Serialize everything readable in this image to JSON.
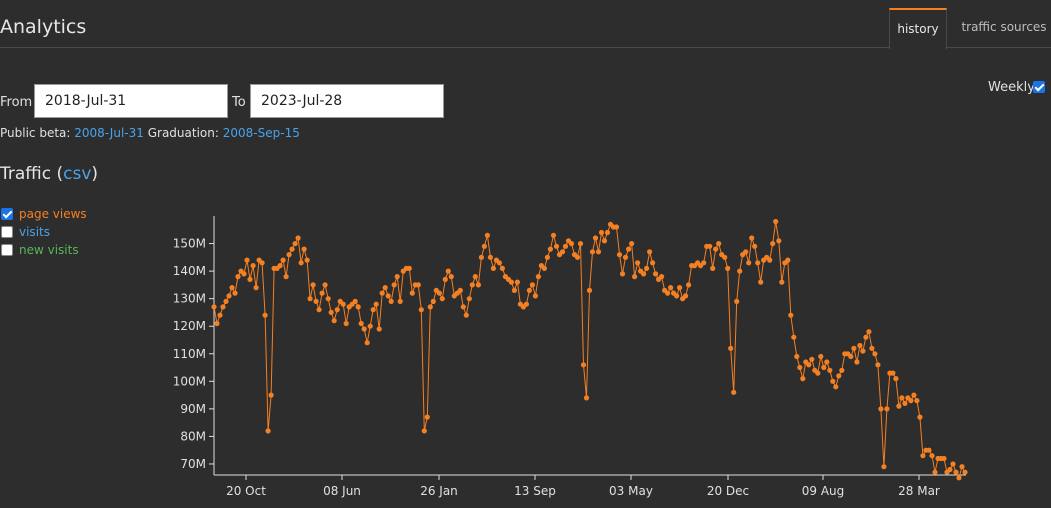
{
  "header": {
    "title": "Analytics",
    "tabs": [
      {
        "label": "history",
        "active": true
      },
      {
        "label": "traffic sources",
        "active": false
      }
    ]
  },
  "filters": {
    "from_label": "From",
    "from_value": "2018-Jul-31",
    "to_label": "To",
    "to_value": "2023-Jul-28",
    "weekly_label": "Weekly",
    "weekly_checked": true
  },
  "milestones": {
    "public_beta_label": "Public beta:",
    "public_beta_date": "2008-Jul-31",
    "graduation_label": "Graduation:",
    "graduation_date": "2008-Sep-15"
  },
  "traffic": {
    "title": "Traffic",
    "csv_label": "csv"
  },
  "legend": [
    {
      "label": "page views",
      "checked": true,
      "color": "#f48024"
    },
    {
      "label": "visits",
      "checked": false,
      "color": "#4aa3e8"
    },
    {
      "label": "new visits",
      "checked": false,
      "color": "#5ab55a"
    }
  ],
  "colors": {
    "background": "#2d2d2d",
    "accent": "#f48024",
    "link": "#4aa3e8",
    "axis": "#e0e0e0"
  },
  "chart_data": {
    "type": "line",
    "series": [
      {
        "name": "page views",
        "color": "#f48024",
        "values": [
          127,
          121,
          124,
          127,
          129,
          131,
          134,
          132,
          138,
          140,
          139,
          144,
          137,
          142,
          134,
          144,
          143,
          124,
          82,
          95,
          141,
          141,
          142,
          144,
          138,
          146,
          148,
          150,
          152,
          143,
          148,
          144,
          130,
          135,
          129,
          126,
          132,
          135,
          130,
          125,
          122,
          126,
          129,
          128,
          121,
          127,
          128,
          129,
          127,
          121,
          119,
          114,
          120,
          126,
          128,
          119,
          132,
          134,
          131,
          129,
          135,
          138,
          129,
          140,
          141,
          141,
          132,
          135,
          135,
          126,
          82,
          87,
          127,
          129,
          133,
          132,
          130,
          137,
          140,
          138,
          131,
          132,
          133,
          127,
          124,
          130,
          135,
          138,
          135,
          145,
          149,
          153,
          145,
          141,
          144,
          143,
          141,
          138,
          137,
          136,
          133,
          136,
          128,
          127,
          128,
          133,
          135,
          131,
          138,
          142,
          141,
          145,
          148,
          153,
          149,
          146,
          147,
          149,
          151,
          150,
          146,
          145,
          150,
          106,
          94,
          133,
          147,
          152,
          147,
          154,
          151,
          154,
          157,
          156,
          156,
          146,
          139,
          145,
          148,
          150,
          138,
          143,
          140,
          139,
          141,
          147,
          143,
          139,
          137,
          138,
          133,
          132,
          134,
          132,
          131,
          134,
          130,
          131,
          135,
          142,
          142,
          143,
          142,
          143,
          149,
          149,
          141,
          148,
          150,
          146,
          145,
          141,
          112,
          96,
          129,
          140,
          146,
          147,
          143,
          152,
          149,
          143,
          136,
          144,
          145,
          144,
          150,
          158,
          151,
          136,
          143,
          144,
          124,
          116,
          109,
          105,
          101,
          107,
          106,
          108,
          104,
          103,
          109,
          105,
          107,
          104,
          100,
          98,
          102,
          104,
          110,
          110,
          109,
          112,
          107,
          113,
          111,
          116,
          118,
          112,
          110,
          106,
          90,
          69,
          90,
          103,
          103,
          101,
          91,
          94,
          92,
          94,
          93,
          95,
          93,
          87,
          73,
          75,
          75,
          73,
          67,
          72,
          72,
          72,
          67,
          68,
          70,
          67,
          65,
          69,
          67
        ]
      }
    ],
    "x_tick_labels": [
      "20 Oct",
      "08 Jun",
      "26 Jan",
      "13 Sep",
      "03 May",
      "20 Dec",
      "09 Aug",
      "28 Mar"
    ],
    "y_tick_labels": [
      "70M",
      "80M",
      "90M",
      "100M",
      "110M",
      "120M",
      "130M",
      "140M",
      "150M"
    ],
    "y_unit": "M",
    "ylim": [
      66,
      160
    ],
    "grid": false,
    "legend_placement": "left"
  }
}
